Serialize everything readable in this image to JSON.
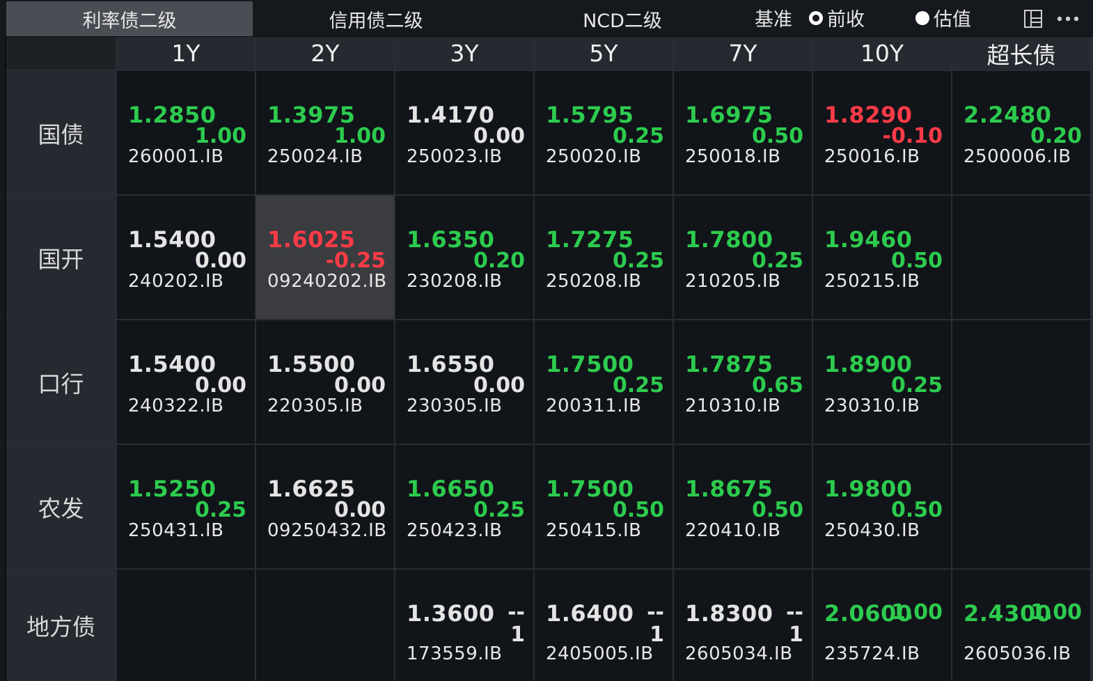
{
  "tabs": [
    {
      "label": "利率债二级",
      "active": true
    },
    {
      "label": "信用债二级",
      "active": false
    },
    {
      "label": "NCD二级",
      "active": false
    }
  ],
  "benchmark": {
    "label": "基准",
    "options": [
      {
        "label": "前收",
        "checked": true
      },
      {
        "label": "估值",
        "checked": false
      }
    ]
  },
  "icons": [
    "layout-icon",
    "more-icon"
  ],
  "colors": {
    "up": "#2dcb4e",
    "down": "#ff3b47",
    "flat": "#e4e4e4",
    "highlight": "#3a3c40"
  },
  "columns": [
    "1Y",
    "2Y",
    "3Y",
    "5Y",
    "7Y",
    "10Y",
    "超长债"
  ],
  "rows": [
    {
      "label": "国债",
      "cells": [
        {
          "yield": "1.2850",
          "change": "1.00",
          "code": "260001.IB",
          "color": "green"
        },
        {
          "yield": "1.3975",
          "change": "1.00",
          "code": "250024.IB",
          "color": "green"
        },
        {
          "yield": "1.4170",
          "change": "0.00",
          "code": "250023.IB",
          "color": "white"
        },
        {
          "yield": "1.5795",
          "change": "0.25",
          "code": "250020.IB",
          "color": "green"
        },
        {
          "yield": "1.6975",
          "change": "0.50",
          "code": "250018.IB",
          "color": "green"
        },
        {
          "yield": "1.8290",
          "change": "-0.10",
          "code": "250016.IB",
          "color": "red"
        },
        {
          "yield": "2.2480",
          "change": "0.20",
          "code": "2500006.IB",
          "color": "green"
        }
      ]
    },
    {
      "label": "国开",
      "cells": [
        {
          "yield": "1.5400",
          "change": "0.00",
          "code": "240202.IB",
          "color": "white"
        },
        {
          "yield": "1.6025",
          "change": "-0.25",
          "code": "09240202.IB",
          "color": "red",
          "highlight": true
        },
        {
          "yield": "1.6350",
          "change": "0.20",
          "code": "230208.IB",
          "color": "green"
        },
        {
          "yield": "1.7275",
          "change": "0.25",
          "code": "250208.IB",
          "color": "green"
        },
        {
          "yield": "1.7800",
          "change": "0.25",
          "code": "210205.IB",
          "color": "green"
        },
        {
          "yield": "1.9460",
          "change": "0.50",
          "code": "250215.IB",
          "color": "green"
        },
        null
      ]
    },
    {
      "label": "口行",
      "cells": [
        {
          "yield": "1.5400",
          "change": "0.00",
          "code": "240322.IB",
          "color": "white"
        },
        {
          "yield": "1.5500",
          "change": "0.00",
          "code": "220305.IB",
          "color": "white"
        },
        {
          "yield": "1.6550",
          "change": "0.00",
          "code": "230305.IB",
          "color": "white"
        },
        {
          "yield": "1.7500",
          "change": "0.25",
          "code": "200311.IB",
          "color": "green"
        },
        {
          "yield": "1.7875",
          "change": "0.65",
          "code": "210310.IB",
          "color": "green"
        },
        {
          "yield": "1.8900",
          "change": "0.25",
          "code": "230310.IB",
          "color": "green"
        },
        null
      ]
    },
    {
      "label": "农发",
      "cells": [
        {
          "yield": "1.5250",
          "change": "0.25",
          "code": "250431.IB",
          "color": "green"
        },
        {
          "yield": "1.6625",
          "change": "0.00",
          "code": "09250432.IB",
          "color": "white"
        },
        {
          "yield": "1.6650",
          "change": "0.25",
          "code": "250423.IB",
          "color": "green"
        },
        {
          "yield": "1.7500",
          "change": "0.50",
          "code": "250415.IB",
          "color": "green"
        },
        {
          "yield": "1.8675",
          "change": "0.50",
          "code": "220410.IB",
          "color": "green"
        },
        {
          "yield": "1.9800",
          "change": "0.50",
          "code": "250430.IB",
          "color": "green"
        },
        null
      ]
    },
    {
      "label": "地方债",
      "cells": [
        null,
        null,
        {
          "yield": "1.3600",
          "change": "--\n1",
          "code": "173559.IB",
          "color": "white"
        },
        {
          "yield": "1.6400",
          "change": "--\n1",
          "code": "2405005.IB",
          "color": "white"
        },
        {
          "yield": "1.8300",
          "change": "--\n1",
          "code": "2605034.IB",
          "color": "white"
        },
        {
          "yield": "2.0600",
          "change": "1.00",
          "code": "235724.IB",
          "color": "green"
        },
        {
          "yield": "2.4300",
          "change": "1.00",
          "code": "2605036.IB",
          "color": "green"
        }
      ]
    }
  ]
}
